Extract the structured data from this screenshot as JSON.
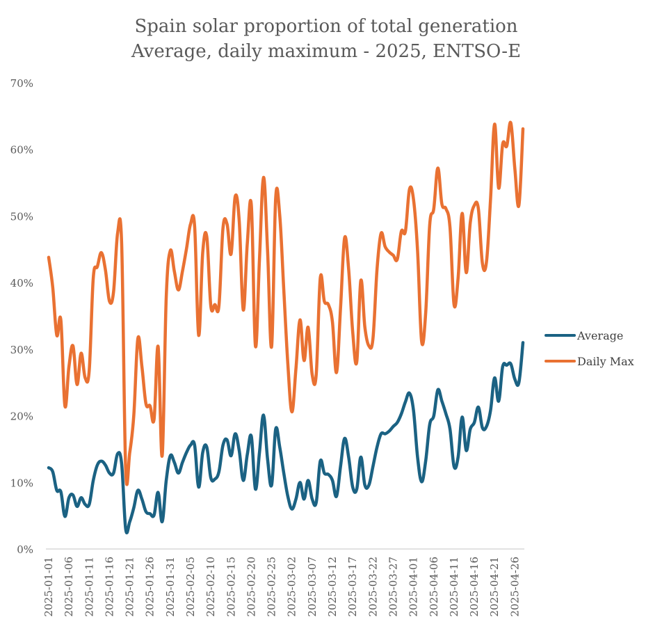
{
  "chart_data": {
    "type": "line",
    "title": "Spain solar proportion of total generation",
    "subtitle": "Average, daily maximum - 2025, ENTSO-E",
    "xlabel": "",
    "ylabel": "",
    "ylim": [
      0,
      0.7
    ],
    "y_ticks": [
      0,
      0.1,
      0.2,
      0.3,
      0.4,
      0.5,
      0.6,
      0.7
    ],
    "y_tick_labels": [
      "0%",
      "10%",
      "20%",
      "30%",
      "40%",
      "50%",
      "60%",
      "70%"
    ],
    "x_start": "2025-01-01",
    "x_end": "2025-04-28",
    "x_tick_labels": [
      "2025-01-01",
      "2025-01-06",
      "2025-01-11",
      "2025-01-16",
      "2025-01-21",
      "2025-01-26",
      "2025-01-31",
      "2025-02-05",
      "2025-02-10",
      "2025-02-15",
      "2025-02-20",
      "2025-02-25",
      "2025-03-02",
      "2025-03-07",
      "2025-03-12",
      "2025-03-17",
      "2025-03-22",
      "2025-03-27",
      "2025-04-01",
      "2025-04-06",
      "2025-04-11",
      "2025-04-16",
      "2025-04-21",
      "2025-04-26"
    ],
    "x_tick_every_days": 5,
    "grid": false,
    "legend_position": "right",
    "series": [
      {
        "name": "Average",
        "color": "#1b6283",
        "values": [
          0.123,
          0.117,
          0.089,
          0.087,
          0.05,
          0.078,
          0.082,
          0.065,
          0.078,
          0.068,
          0.068,
          0.104,
          0.127,
          0.133,
          0.127,
          0.115,
          0.115,
          0.144,
          0.129,
          0.031,
          0.042,
          0.063,
          0.089,
          0.076,
          0.057,
          0.054,
          0.052,
          0.086,
          0.042,
          0.104,
          0.141,
          0.131,
          0.115,
          0.131,
          0.146,
          0.157,
          0.157,
          0.094,
          0.146,
          0.154,
          0.108,
          0.106,
          0.117,
          0.157,
          0.165,
          0.141,
          0.174,
          0.149,
          0.104,
          0.143,
          0.17,
          0.091,
          0.146,
          0.202,
          0.136,
          0.097,
          0.181,
          0.154,
          0.115,
          0.08,
          0.061,
          0.076,
          0.101,
          0.076,
          0.104,
          0.076,
          0.071,
          0.133,
          0.115,
          0.113,
          0.104,
          0.08,
          0.125,
          0.167,
          0.139,
          0.094,
          0.091,
          0.139,
          0.097,
          0.097,
          0.125,
          0.154,
          0.174,
          0.174,
          0.178,
          0.185,
          0.191,
          0.204,
          0.222,
          0.235,
          0.209,
          0.139,
          0.102,
          0.133,
          0.188,
          0.201,
          0.24,
          0.223,
          0.204,
          0.181,
          0.125,
          0.139,
          0.199,
          0.149,
          0.181,
          0.191,
          0.214,
          0.183,
          0.185,
          0.209,
          0.258,
          0.223,
          0.275,
          0.277,
          0.279,
          0.256,
          0.251,
          0.311
        ]
      },
      {
        "name": "Daily Max",
        "color": "#e97132",
        "values": [
          0.439,
          0.394,
          0.322,
          0.345,
          0.216,
          0.275,
          0.306,
          0.248,
          0.295,
          0.258,
          0.269,
          0.408,
          0.425,
          0.446,
          0.42,
          0.373,
          0.387,
          0.475,
          0.46,
          0.12,
          0.146,
          0.202,
          0.317,
          0.275,
          0.219,
          0.216,
          0.196,
          0.305,
          0.141,
          0.379,
          0.449,
          0.418,
          0.39,
          0.418,
          0.452,
          0.489,
          0.486,
          0.322,
          0.446,
          0.47,
          0.366,
          0.368,
          0.366,
          0.483,
          0.489,
          0.444,
          0.53,
          0.494,
          0.36,
          0.46,
          0.517,
          0.306,
          0.436,
          0.559,
          0.449,
          0.305,
          0.528,
          0.502,
          0.39,
          0.279,
          0.207,
          0.272,
          0.345,
          0.284,
          0.334,
          0.263,
          0.263,
          0.408,
          0.373,
          0.368,
          0.342,
          0.266,
          0.363,
          0.468,
          0.421,
          0.327,
          0.282,
          0.404,
          0.334,
          0.306,
          0.317,
          0.421,
          0.475,
          0.455,
          0.447,
          0.442,
          0.436,
          0.478,
          0.478,
          0.541,
          0.526,
          0.449,
          0.313,
          0.355,
          0.488,
          0.512,
          0.573,
          0.519,
          0.512,
          0.484,
          0.368,
          0.408,
          0.505,
          0.416,
          0.491,
          0.517,
          0.512,
          0.43,
          0.432,
          0.526,
          0.639,
          0.543,
          0.609,
          0.606,
          0.641,
          0.572,
          0.517,
          0.632
        ]
      }
    ]
  }
}
